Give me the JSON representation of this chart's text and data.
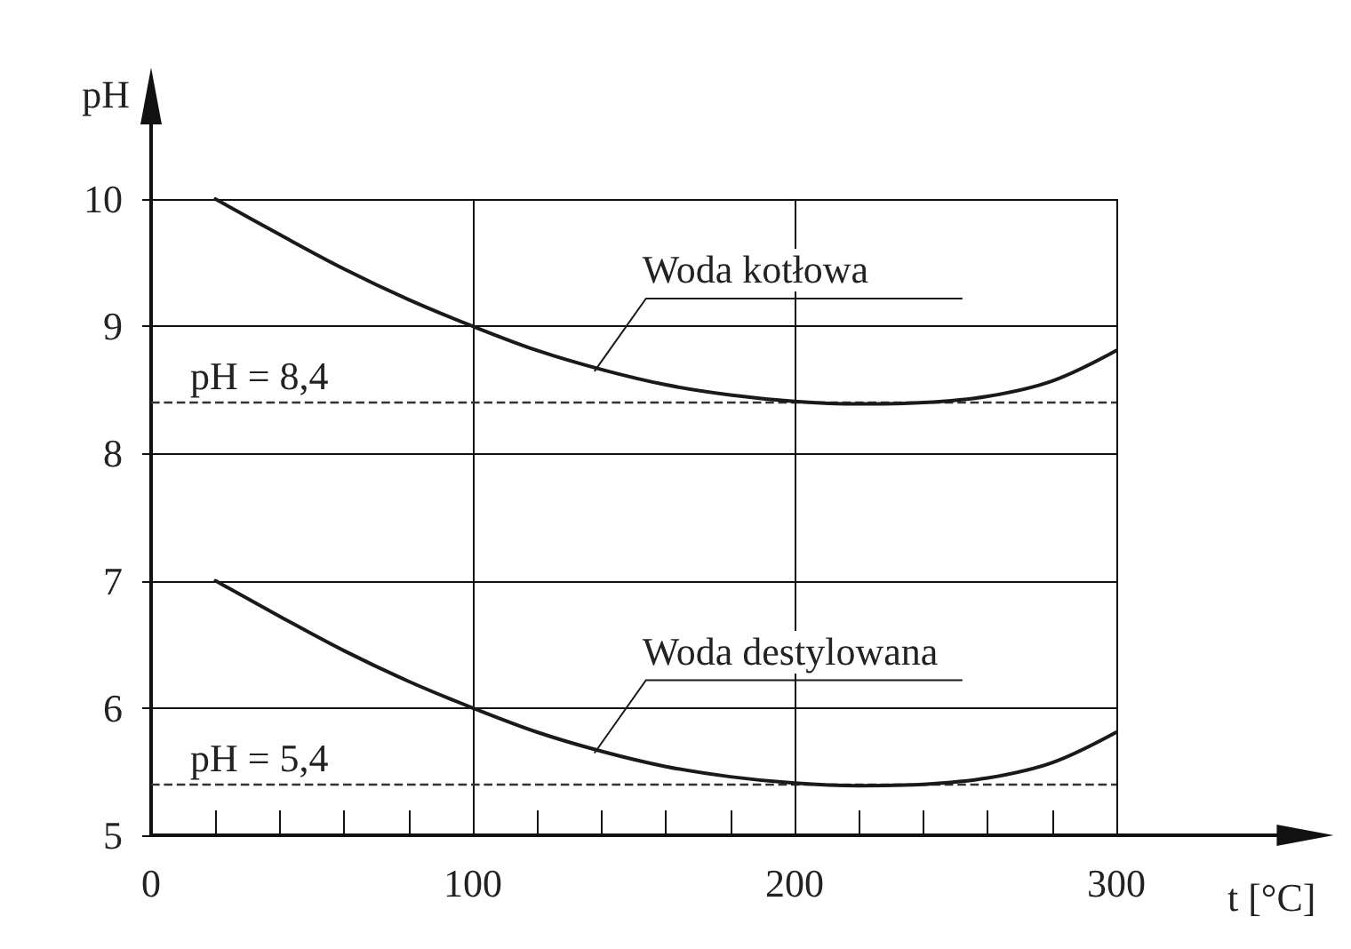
{
  "chart_data": {
    "type": "line",
    "xlabel": "t [°C]",
    "ylabel": "pH",
    "xlim": [
      0,
      362
    ],
    "ylim": [
      5,
      10
    ],
    "xticks": [
      0,
      {
        "value": 20,
        "label": null
      },
      {
        "value": 40,
        "label": null
      },
      {
        "value": 60,
        "label": null
      },
      {
        "value": 80,
        "label": null
      },
      100,
      {
        "value": 120,
        "label": null
      },
      {
        "value": 140,
        "label": null
      },
      {
        "value": 160,
        "label": null
      },
      {
        "value": 180,
        "label": null
      },
      200,
      {
        "value": 220,
        "label": null
      },
      {
        "value": 240,
        "label": null
      },
      {
        "value": 260,
        "label": null
      },
      {
        "value": 280,
        "label": null
      },
      300
    ],
    "yticks": [
      5,
      6,
      7,
      8,
      9,
      10
    ],
    "x": [
      20,
      40,
      60,
      80,
      100,
      120,
      140,
      160,
      180,
      200,
      220,
      240,
      260,
      280,
      300
    ],
    "series": [
      {
        "name": "Woda kotłowa",
        "color": "#1a1a1a",
        "values": [
          10,
          9.72,
          9.45,
          9.21,
          9.0,
          8.81,
          8.66,
          8.54,
          8.46,
          8.41,
          8.39,
          8.4,
          8.45,
          8.57,
          8.81
        ]
      },
      {
        "name": "Woda destylowana",
        "color": "#1a1a1a",
        "values": [
          7,
          6.72,
          6.45,
          6.21,
          6.0,
          5.81,
          5.66,
          5.54,
          5.46,
          5.41,
          5.39,
          5.4,
          5.45,
          5.57,
          5.81
        ]
      }
    ],
    "ref_lines": [
      {
        "axis": "y",
        "value": 8.4,
        "label": "pH = 8,4",
        "color": "#333333",
        "line_style": "dashed"
      },
      {
        "axis": "y",
        "value": 5.4,
        "label": "pH = 5,4",
        "color": "#333333",
        "line_style": "dashed"
      }
    ],
    "grid": true,
    "legend": false,
    "marker": "none",
    "line_style": "solid"
  }
}
